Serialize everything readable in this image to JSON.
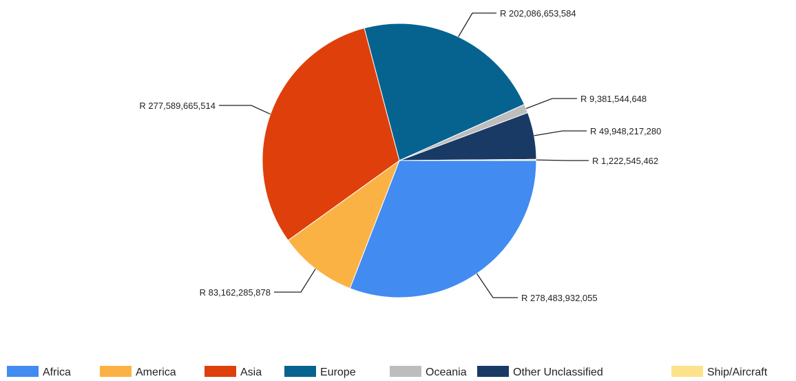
{
  "chart_data": {
    "type": "pie",
    "currency_prefix": "R",
    "slices": [
      {
        "name": "Africa",
        "value": 278483932055,
        "label": "R 278,483,932,055",
        "color": "#428bf0"
      },
      {
        "name": "America",
        "value": 83162285878,
        "label": "R 83,162,285,878",
        "color": "#fbb244"
      },
      {
        "name": "Asia",
        "value": 277589665514,
        "label": "R 277,589,665,514",
        "color": "#df400b"
      },
      {
        "name": "Europe",
        "value": 202086653584,
        "label": "R 202,086,653,584",
        "color": "#06638f"
      },
      {
        "name": "Oceania",
        "value": 9381544648,
        "label": "R 9,381,544,648",
        "color": "#bdbdbd"
      },
      {
        "name": "Other Unclassified",
        "value": 49948217280,
        "label": "R 49,948,217,280",
        "color": "#1a3a66"
      },
      {
        "name": "Ship/Aircraft",
        "value": 1222545462,
        "label": "R 1,222,545,462",
        "color": "#fde28a"
      }
    ],
    "legend": {
      "position": "bottom",
      "entries": [
        "Africa",
        "America",
        "Asia",
        "Europe",
        "Oceania",
        "Other Unclassified",
        "Ship/Aircraft"
      ]
    }
  }
}
